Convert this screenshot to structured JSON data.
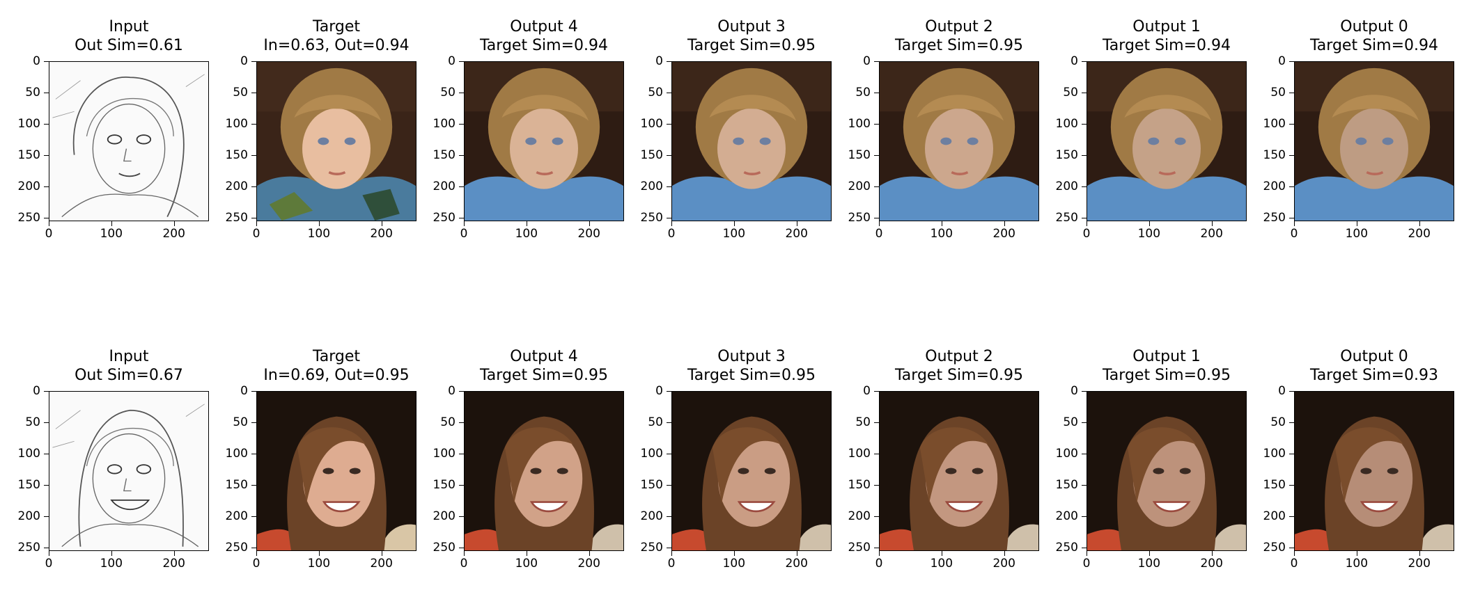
{
  "figure": {
    "ticks": [
      "0",
      "100",
      "200"
    ],
    "yticks": [
      "0",
      "50",
      "100",
      "150",
      "200",
      "250"
    ],
    "rows": [
      {
        "subject": "child",
        "panels": [
          {
            "title1": "Input",
            "title2": "Out Sim=0.61",
            "kind": "sketch"
          },
          {
            "title1": "Target",
            "title2": "In=0.63, Out=0.94",
            "kind": "photo"
          },
          {
            "title1": "Output 4",
            "title2": "Target Sim=0.94",
            "kind": "photo"
          },
          {
            "title1": "Output 3",
            "title2": "Target Sim=0.95",
            "kind": "photo"
          },
          {
            "title1": "Output 2",
            "title2": "Target Sim=0.95",
            "kind": "photo"
          },
          {
            "title1": "Output 1",
            "title2": "Target Sim=0.94",
            "kind": "photo"
          },
          {
            "title1": "Output 0",
            "title2": "Target Sim=0.94",
            "kind": "photo"
          }
        ]
      },
      {
        "subject": "woman",
        "panels": [
          {
            "title1": "Input",
            "title2": "Out Sim=0.67",
            "kind": "sketch"
          },
          {
            "title1": "Target",
            "title2": "In=0.69, Out=0.95",
            "kind": "photo"
          },
          {
            "title1": "Output 4",
            "title2": "Target Sim=0.95",
            "kind": "photo"
          },
          {
            "title1": "Output 3",
            "title2": "Target Sim=0.95",
            "kind": "photo"
          },
          {
            "title1": "Output 2",
            "title2": "Target Sim=0.95",
            "kind": "photo"
          },
          {
            "title1": "Output 1",
            "title2": "Target Sim=0.95",
            "kind": "photo"
          },
          {
            "title1": "Output 0",
            "title2": "Target Sim=0.93",
            "kind": "photo"
          }
        ]
      }
    ]
  }
}
